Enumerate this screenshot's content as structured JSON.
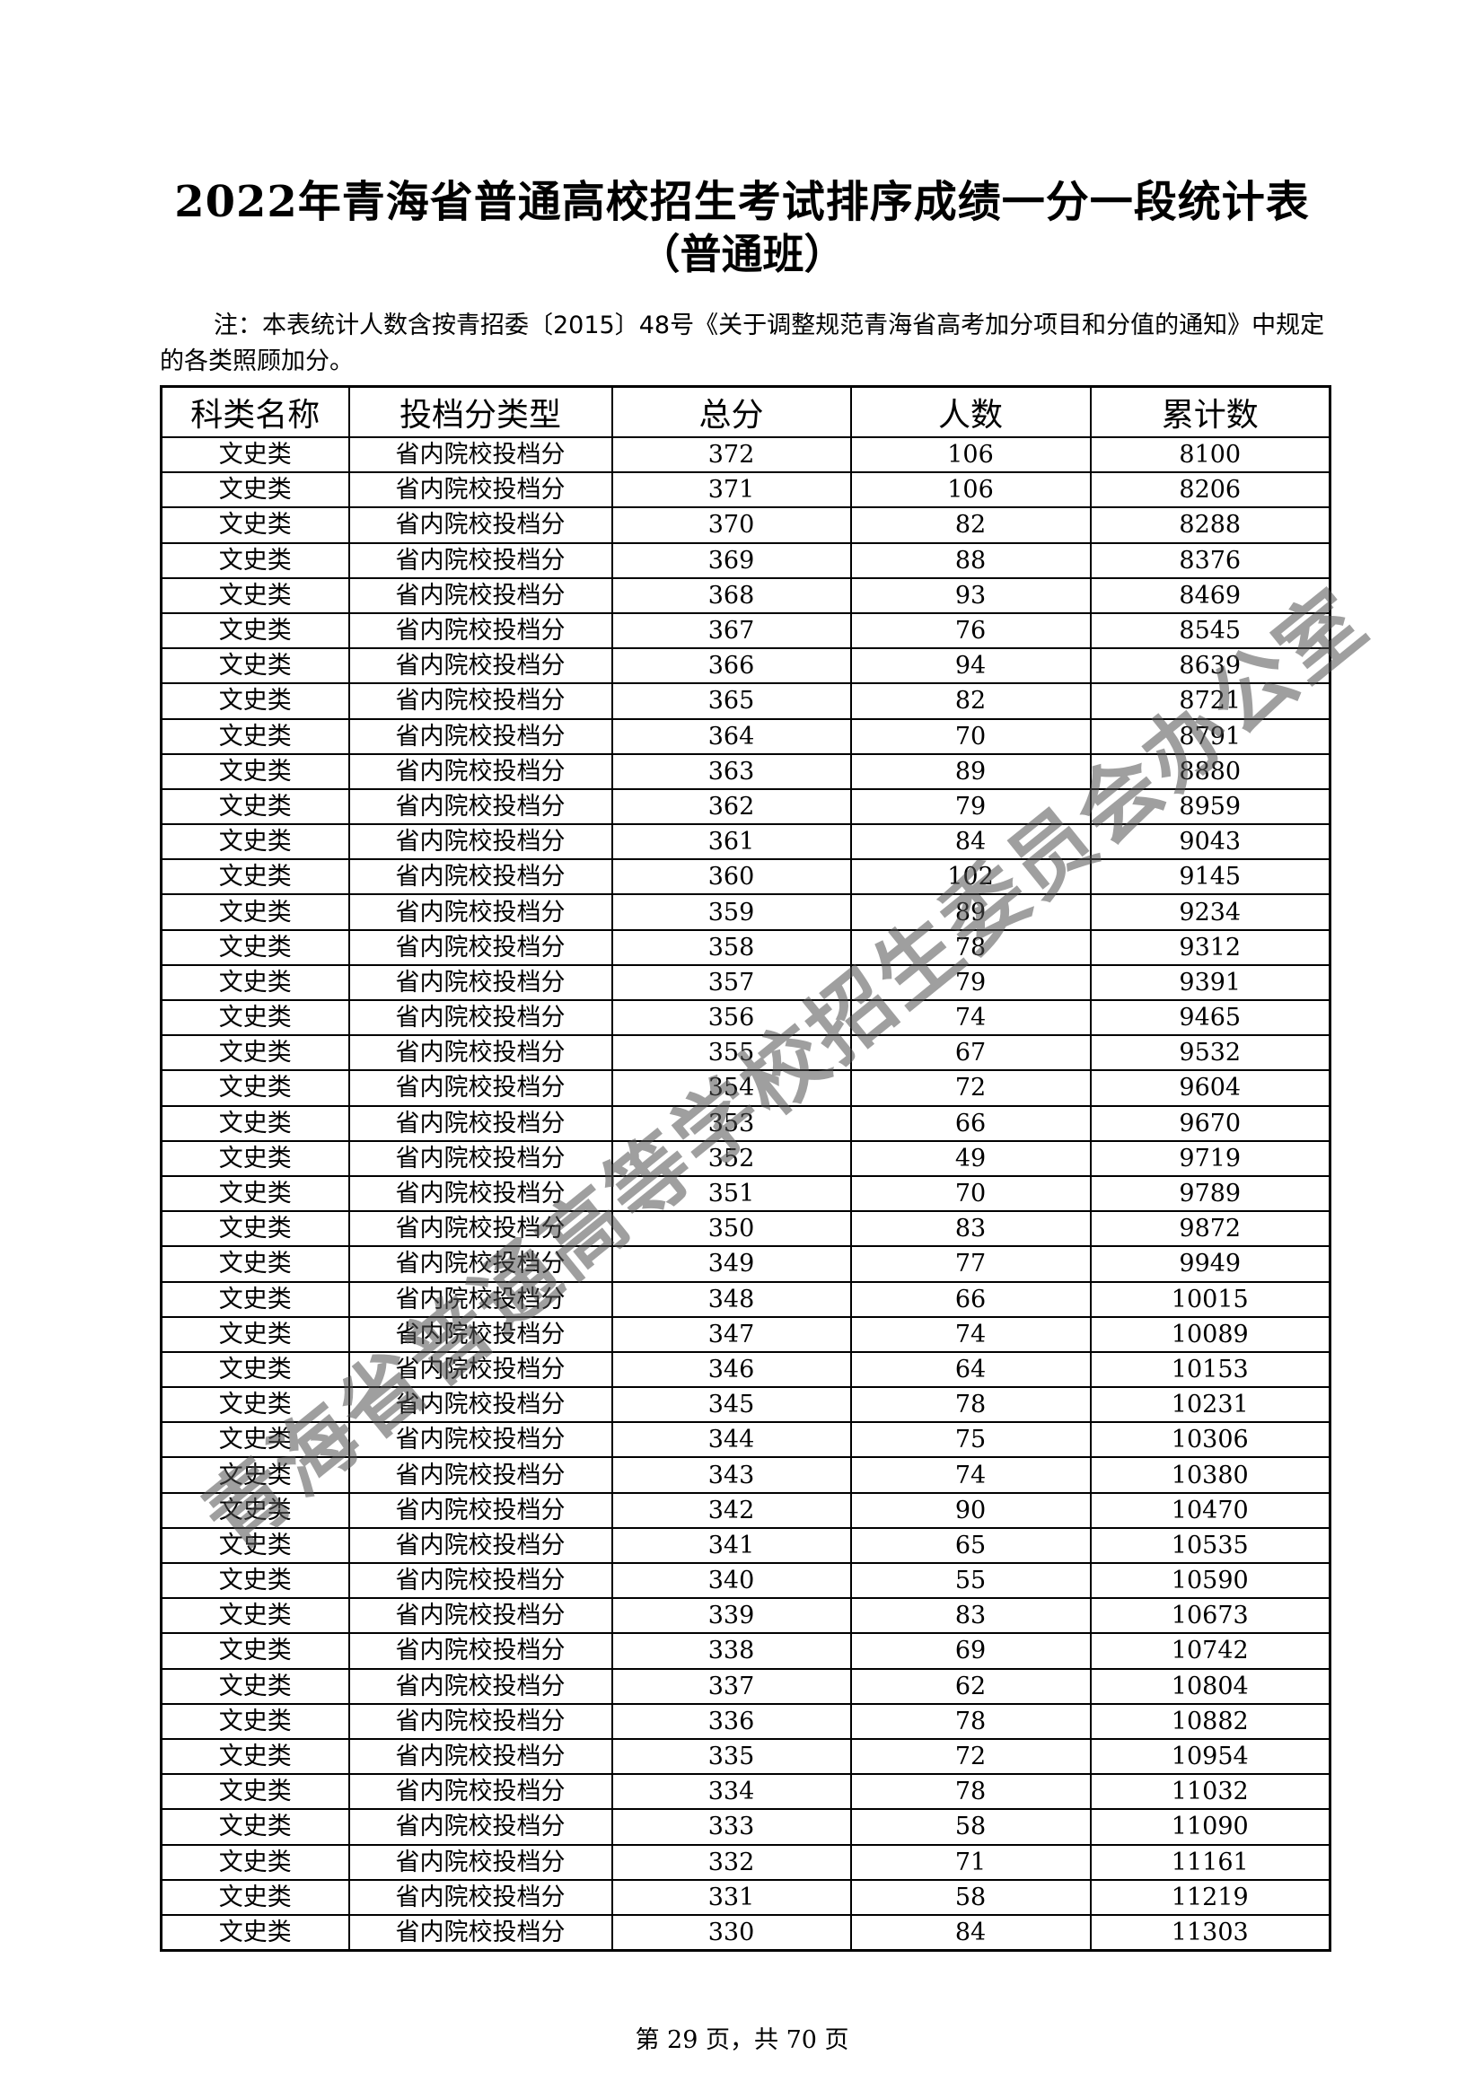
{
  "title": "2022年青海省普通高校招生考试排序成绩一分一段统计表",
  "subtitle": "（普通班）",
  "note": "注：本表统计人数含按青招委〔2015〕48号《关于调整规范青海省高考加分项目和分值的通知》中规定的各类照顾加分。",
  "table": {
    "headers": [
      "科类名称",
      "投档分类型",
      "总分",
      "人数",
      "累计数"
    ],
    "category": "文史类",
    "score_type": "省内院校投档分",
    "rows": [
      [
        372,
        106,
        8100
      ],
      [
        371,
        106,
        8206
      ],
      [
        370,
        82,
        8288
      ],
      [
        369,
        88,
        8376
      ],
      [
        368,
        93,
        8469
      ],
      [
        367,
        76,
        8545
      ],
      [
        366,
        94,
        8639
      ],
      [
        365,
        82,
        8721
      ],
      [
        364,
        70,
        8791
      ],
      [
        363,
        89,
        8880
      ],
      [
        362,
        79,
        8959
      ],
      [
        361,
        84,
        9043
      ],
      [
        360,
        102,
        9145
      ],
      [
        359,
        89,
        9234
      ],
      [
        358,
        78,
        9312
      ],
      [
        357,
        79,
        9391
      ],
      [
        356,
        74,
        9465
      ],
      [
        355,
        67,
        9532
      ],
      [
        354,
        72,
        9604
      ],
      [
        353,
        66,
        9670
      ],
      [
        352,
        49,
        9719
      ],
      [
        351,
        70,
        9789
      ],
      [
        350,
        83,
        9872
      ],
      [
        349,
        77,
        9949
      ],
      [
        348,
        66,
        10015
      ],
      [
        347,
        74,
        10089
      ],
      [
        346,
        64,
        10153
      ],
      [
        345,
        78,
        10231
      ],
      [
        344,
        75,
        10306
      ],
      [
        343,
        74,
        10380
      ],
      [
        342,
        90,
        10470
      ],
      [
        341,
        65,
        10535
      ],
      [
        340,
        55,
        10590
      ],
      [
        339,
        83,
        10673
      ],
      [
        338,
        69,
        10742
      ],
      [
        337,
        62,
        10804
      ],
      [
        336,
        78,
        10882
      ],
      [
        335,
        72,
        10954
      ],
      [
        334,
        78,
        11032
      ],
      [
        333,
        58,
        11090
      ],
      [
        332,
        71,
        11161
      ],
      [
        331,
        58,
        11219
      ],
      [
        330,
        84,
        11303
      ]
    ]
  },
  "footer": "第 29 页，共 70 页",
  "watermark": "青海省普通高等学校招生委员会办公室"
}
